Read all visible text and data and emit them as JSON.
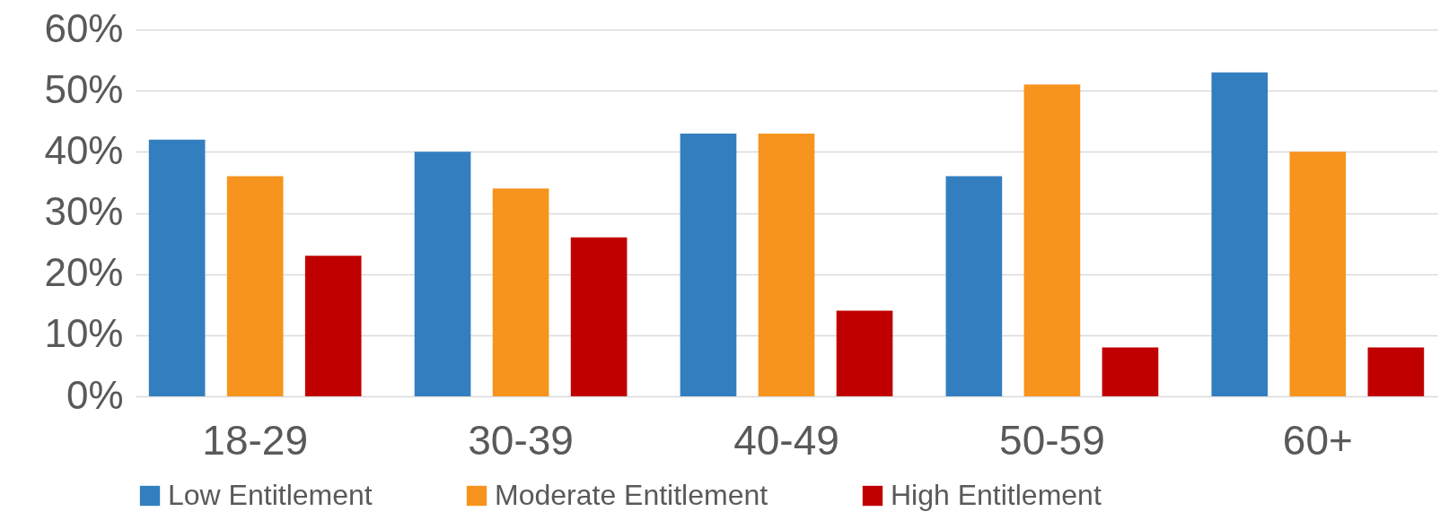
{
  "chart_data": {
    "type": "bar",
    "categories": [
      "18-29",
      "30-39",
      "40-49",
      "50-59",
      "60+"
    ],
    "series": [
      {
        "name": "Low Entitlement",
        "color": "#337ebf",
        "values": [
          42,
          40,
          43,
          36,
          53
        ]
      },
      {
        "name": "Moderate Entitlement",
        "color": "#f7941e",
        "values": [
          36,
          34,
          43,
          51,
          40
        ]
      },
      {
        "name": "High Entitlement",
        "color": "#c00000",
        "values": [
          23,
          26,
          14,
          8,
          8
        ]
      }
    ],
    "ylim": [
      0,
      60
    ],
    "yticks": [
      {
        "value": 0,
        "label": "0%"
      },
      {
        "value": 10,
        "label": "10%"
      },
      {
        "value": 20,
        "label": "20%"
      },
      {
        "value": 30,
        "label": "30%"
      },
      {
        "value": 40,
        "label": "40%"
      },
      {
        "value": 50,
        "label": "50%"
      },
      {
        "value": 60,
        "label": "60%"
      }
    ],
    "grid": "y",
    "legend": "bottom"
  }
}
